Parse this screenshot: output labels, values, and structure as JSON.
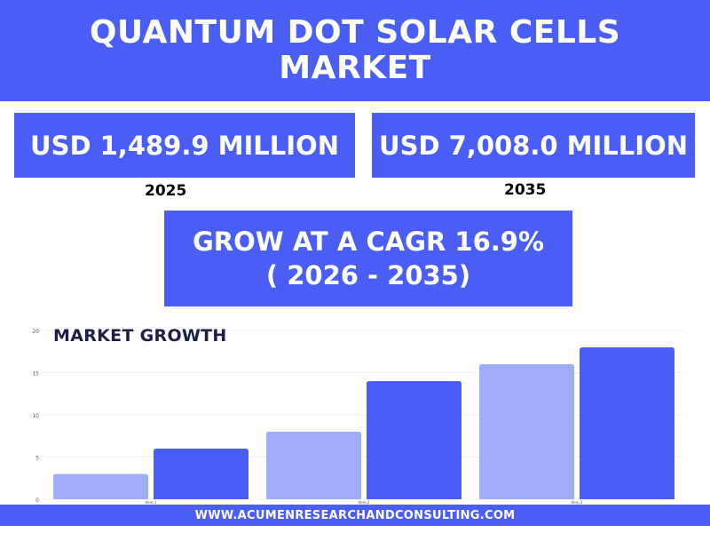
{
  "header": {
    "title": "QUANTUM DOT SOLAR CELLS MARKET"
  },
  "stats": {
    "left_value": "USD 1,489.9 MILLION",
    "left_year": "2025",
    "right_value": "USD 7,008.0 MILLION",
    "right_year": "2035",
    "cagr_line1": "GROW AT A CAGR 16.9%",
    "cagr_line2": "( 2026 - 2035)"
  },
  "colors": {
    "accent": "#4a5ef5",
    "series_light": "#a0adfa",
    "series_dark": "#4a5ef5"
  },
  "footer": {
    "url": "WWW.ACUMENRESEARCHANDCONSULTING.COM"
  },
  "chart_data": {
    "type": "bar",
    "title": "MARKET GROWTH",
    "categories": [
      "Item 1",
      "Item 2",
      "Item 3"
    ],
    "series": [
      {
        "values": [
          3,
          8,
          16
        ]
      },
      {
        "values": [
          6,
          14,
          18
        ]
      }
    ],
    "ylim": [
      0,
      20
    ],
    "yticks": [
      "0",
      "5",
      "10",
      "15",
      "20"
    ],
    "grid": true,
    "xlabel": "",
    "ylabel": ""
  }
}
